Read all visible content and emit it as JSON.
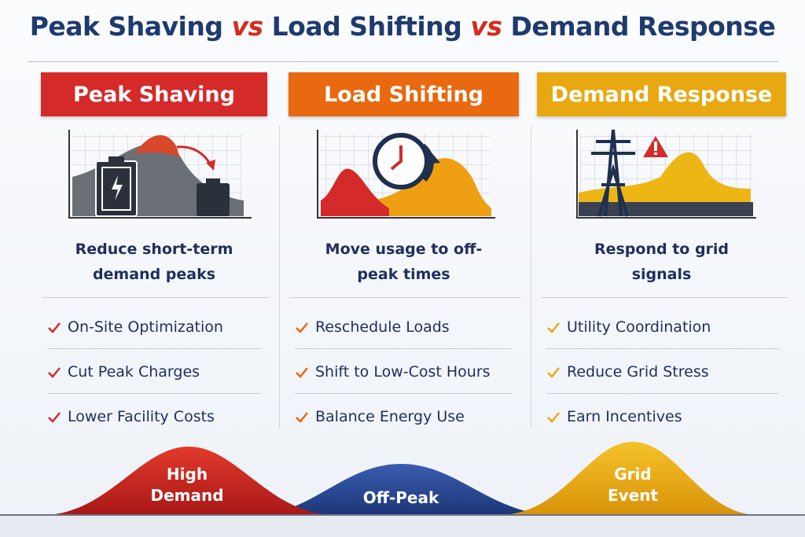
{
  "title": {
    "parts": [
      "Peak Shaving",
      "vs",
      "Load Shifting",
      "vs",
      "Demand Response"
    ]
  },
  "columns": [
    {
      "header": "Peak Shaving",
      "description": "Reduce short-term demand peaks",
      "items": [
        "On-Site Optimization",
        "Cut Peak Charges",
        "Lower Facility Costs"
      ]
    },
    {
      "header": "Load Shifting",
      "description": "Move usage to off-peak times",
      "items": [
        "Reschedule Loads",
        "Shift to Low-Cost Hours",
        "Balance Energy Use"
      ]
    },
    {
      "header": "Demand Response",
      "description": "Respond to grid signals",
      "items": [
        "Utility Coordination",
        "Reduce Grid Stress",
        "Earn Incentives"
      ]
    }
  ],
  "bottom_labels": [
    "High Demand",
    "Off-Peak",
    "Grid Event"
  ]
}
